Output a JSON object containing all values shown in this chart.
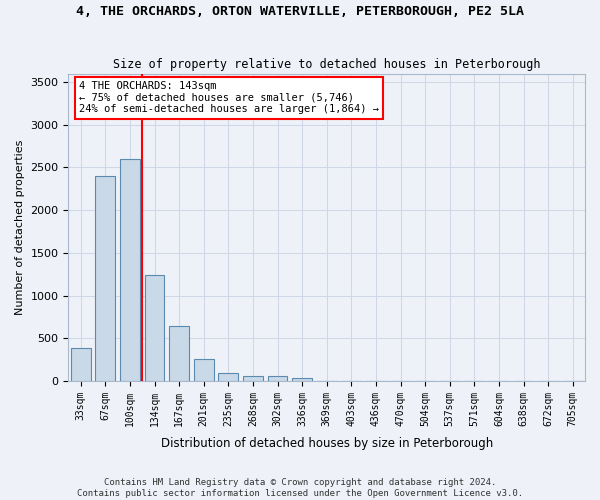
{
  "title": "4, THE ORCHARDS, ORTON WATERVILLE, PETERBOROUGH, PE2 5LA",
  "subtitle": "Size of property relative to detached houses in Peterborough",
  "xlabel": "Distribution of detached houses by size in Peterborough",
  "ylabel": "Number of detached properties",
  "footer_line1": "Contains HM Land Registry data © Crown copyright and database right 2024.",
  "footer_line2": "Contains public sector information licensed under the Open Government Licence v3.0.",
  "categories": [
    "33sqm",
    "67sqm",
    "100sqm",
    "134sqm",
    "167sqm",
    "201sqm",
    "235sqm",
    "268sqm",
    "302sqm",
    "336sqm",
    "369sqm",
    "403sqm",
    "436sqm",
    "470sqm",
    "504sqm",
    "537sqm",
    "571sqm",
    "604sqm",
    "638sqm",
    "672sqm",
    "705sqm"
  ],
  "values": [
    390,
    2400,
    2600,
    1240,
    640,
    255,
    90,
    55,
    55,
    40,
    0,
    0,
    0,
    0,
    0,
    0,
    0,
    0,
    0,
    0,
    0
  ],
  "bar_color": "#c9d9e8",
  "bar_edge_color": "#5a8ab0",
  "grid_color": "#d0d8e8",
  "background_color": "#eef2f8",
  "annotation_line1": "4 THE ORCHARDS: 143sqm",
  "annotation_line2": "← 75% of detached houses are smaller (5,746)",
  "annotation_line3": "24% of semi-detached houses are larger (1,864) →",
  "vline_color": "red",
  "vline_x": 2.5,
  "ylim": [
    0,
    3600
  ],
  "yticks": [
    0,
    500,
    1000,
    1500,
    2000,
    2500,
    3000,
    3500
  ]
}
